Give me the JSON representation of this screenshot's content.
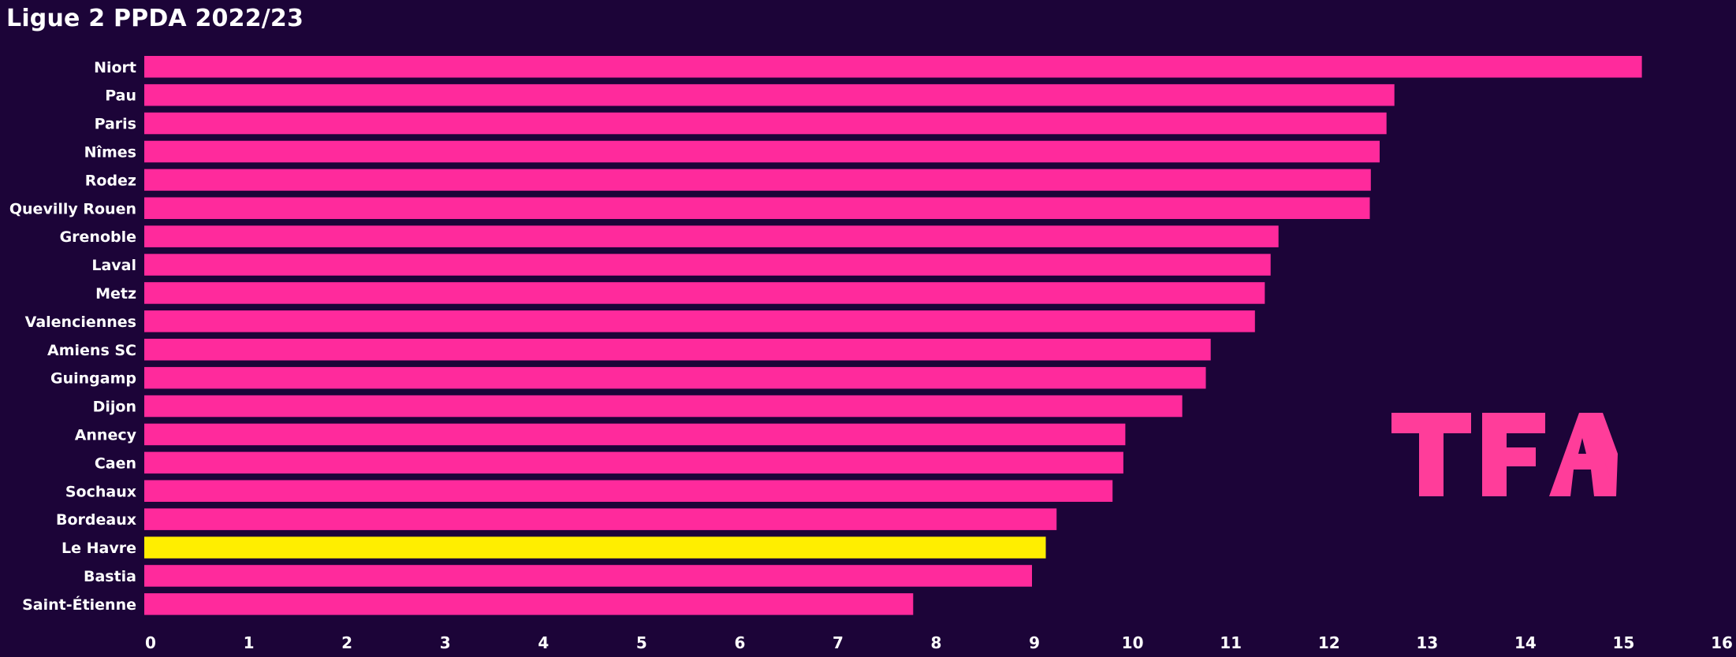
{
  "chart_data": {
    "type": "bar",
    "orientation": "horizontal",
    "title": "Ligue 2 PPDA 2022/23",
    "xlabel": "",
    "ylabel": "",
    "xlim": [
      0,
      16
    ],
    "xticks": [
      0,
      1,
      2,
      3,
      4,
      5,
      6,
      7,
      8,
      9,
      10,
      11,
      12,
      13,
      14,
      15,
      16
    ],
    "grid": false,
    "categories": [
      "Niort",
      "Pau",
      "Paris",
      "Nîmes",
      "Rodez",
      "Quevilly Rouen",
      "Grenoble",
      "Laval",
      "Metz",
      "Valenciennes",
      "Amiens SC",
      "Guingamp",
      "Dijon",
      "Annecy",
      "Caen",
      "Sochaux",
      "Bordeaux",
      "Le Havre",
      "Bastia",
      "Saint-Étienne"
    ],
    "values": [
      15.25,
      12.73,
      12.65,
      12.58,
      12.49,
      12.48,
      11.55,
      11.47,
      11.41,
      11.31,
      10.86,
      10.81,
      10.57,
      9.99,
      9.97,
      9.86,
      9.29,
      9.18,
      9.04,
      7.83
    ],
    "highlight": "Le Havre",
    "colors": {
      "background": "#1c0438",
      "bar": "#ff2a9c",
      "highlight": "#ffee00",
      "text": "#ffffff",
      "logo": "#ff3d9a"
    }
  },
  "watermark": {
    "text": "TFA",
    "icon": "tfa-logo"
  }
}
